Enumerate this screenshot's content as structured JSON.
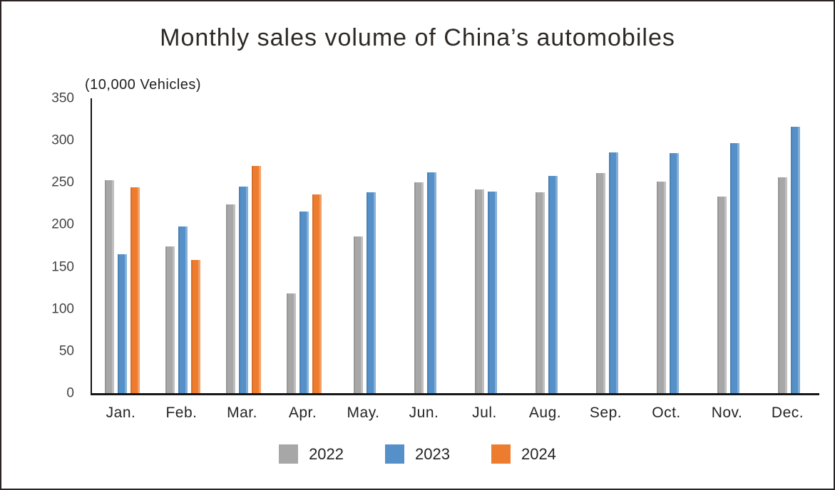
{
  "chart_data": {
    "type": "bar",
    "title": "Monthly sales volume of China’s automobiles",
    "unit_label": "(10,000 Vehicles)",
    "categories": [
      "Jan.",
      "Feb.",
      "Mar.",
      "Apr.",
      "May.",
      "Jun.",
      "Jul.",
      "Aug.",
      "Sep.",
      "Oct.",
      "Nov.",
      "Dec."
    ],
    "series": [
      {
        "name": "2022",
        "color": "#a7a7a7",
        "values": [
          253,
          174,
          224,
          118,
          186,
          250,
          242,
          238,
          261,
          251,
          233,
          256
        ]
      },
      {
        "name": "2023",
        "color": "#5590c8",
        "values": [
          165,
          198,
          245,
          216,
          238,
          262,
          239,
          258,
          286,
          285,
          297,
          316
        ]
      },
      {
        "name": "2024",
        "color": "#ee7c2f",
        "values": [
          244,
          158,
          270,
          236,
          null,
          null,
          null,
          null,
          null,
          null,
          null,
          null
        ]
      }
    ],
    "ylim": [
      0,
      350
    ],
    "yticks": [
      0,
      50,
      100,
      150,
      200,
      250,
      300,
      350
    ],
    "grid": false,
    "legend_position": "bottom",
    "axis_color": "#161616",
    "frame_border_color": "#2b2422"
  }
}
